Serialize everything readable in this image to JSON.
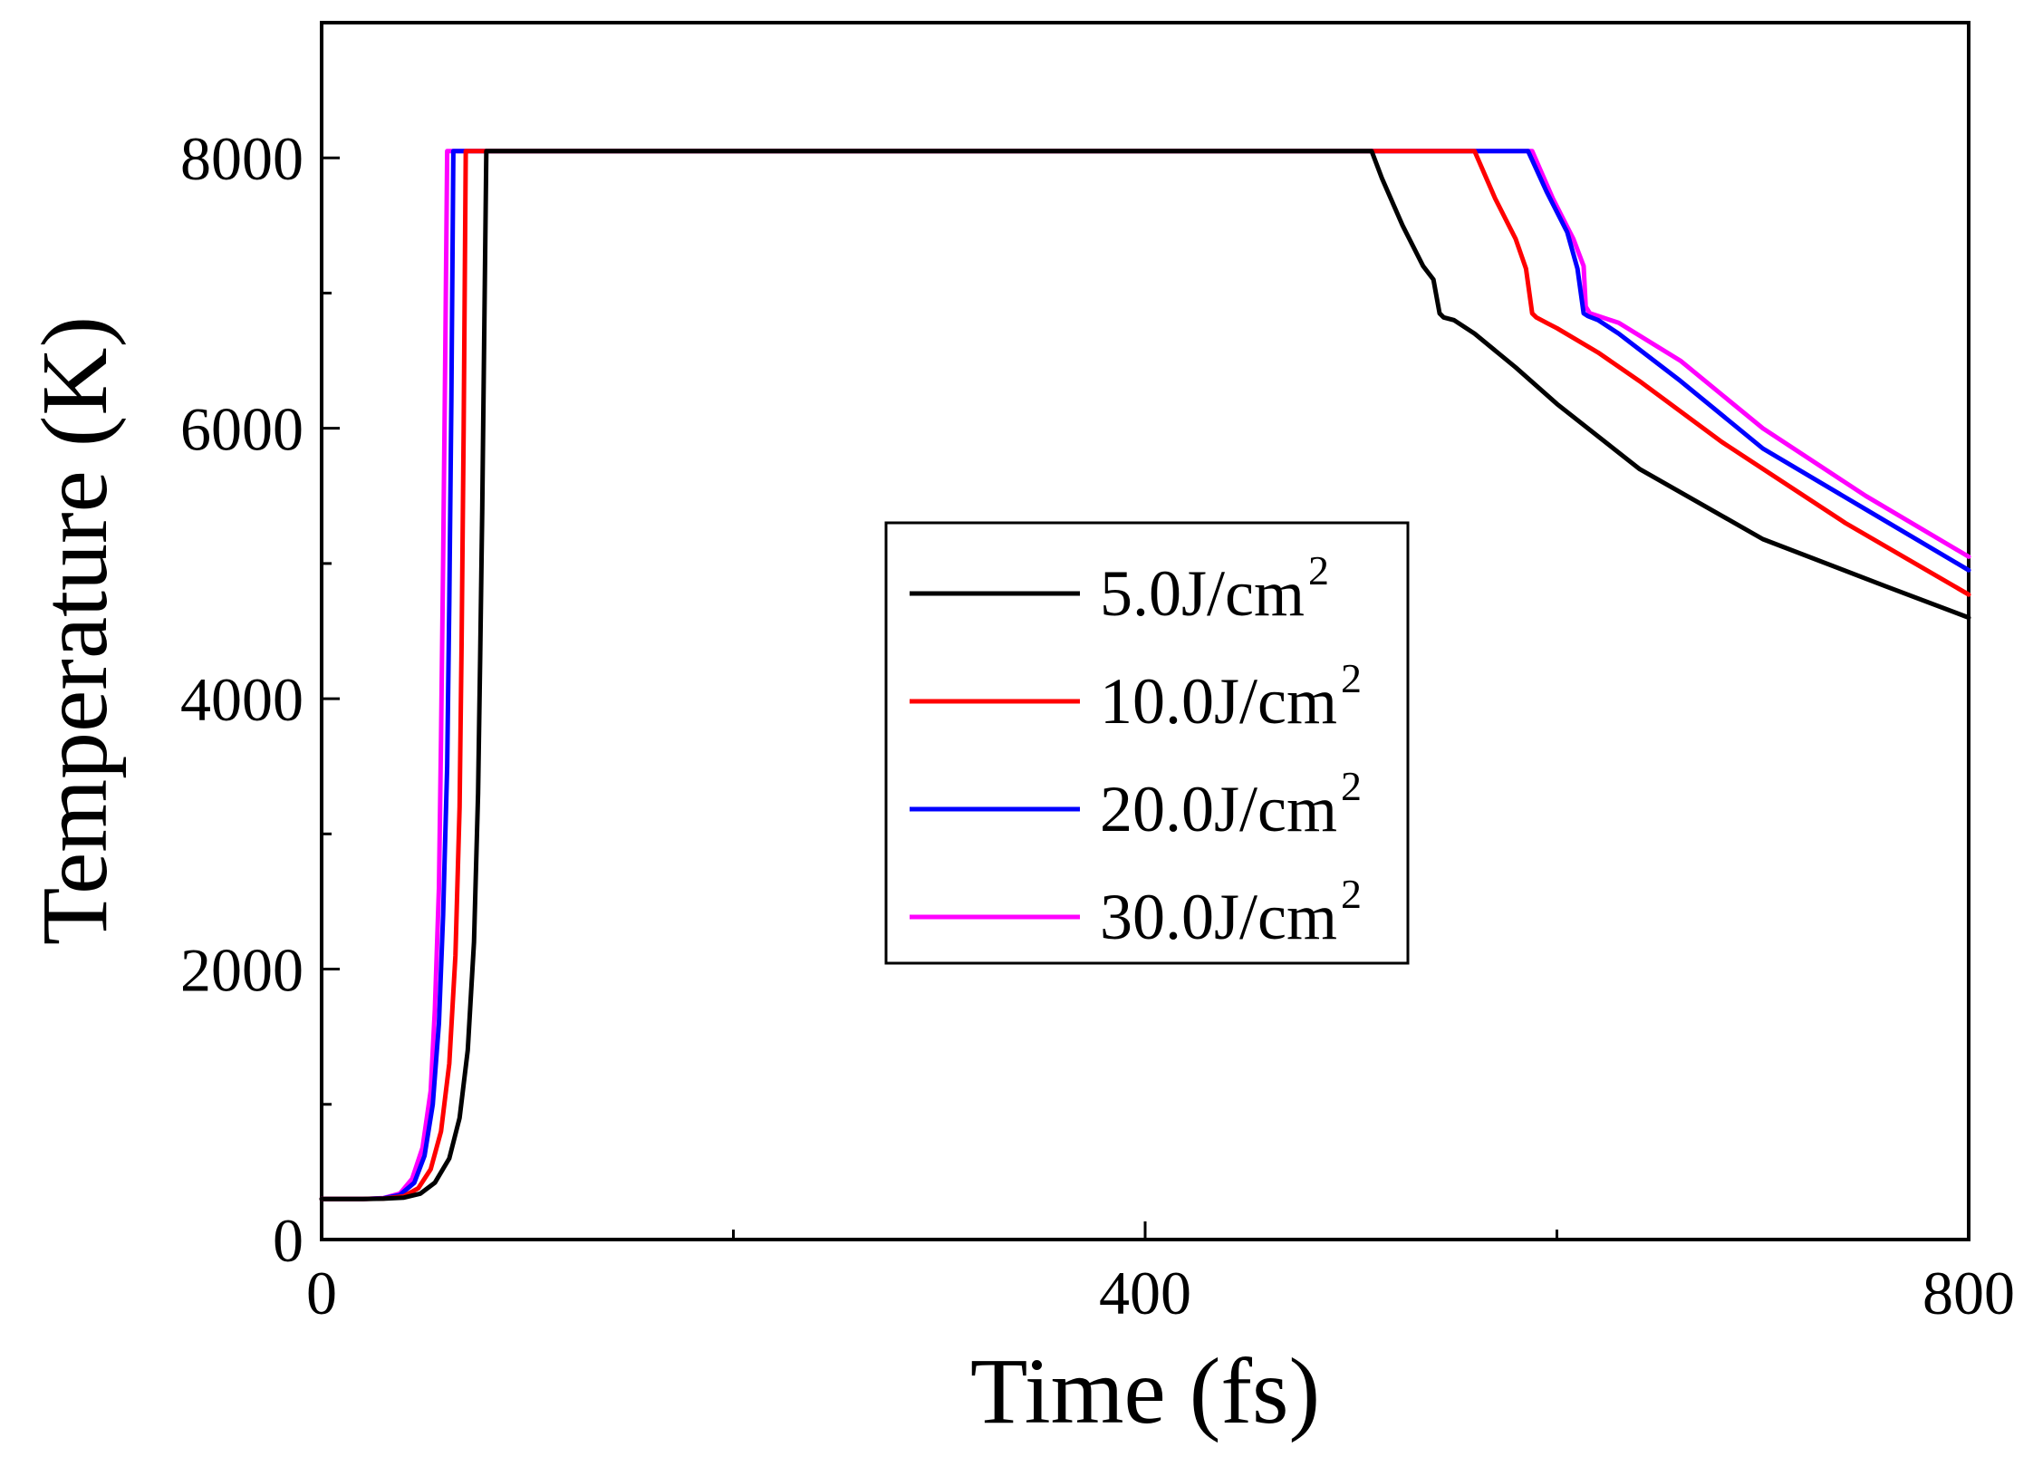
{
  "chart_data": {
    "type": "line",
    "title": "",
    "xlabel": "Time (fs)",
    "ylabel": "Temperature (K)",
    "xlim": [
      0,
      800
    ],
    "ylim": [
      0,
      9000
    ],
    "xticks": [
      0,
      400,
      800
    ],
    "yticks": [
      0,
      2000,
      4000,
      6000,
      8000
    ],
    "grid": false,
    "legend_position": "center-right",
    "series": [
      {
        "name": "5.0J/cm2",
        "label_main": "5.0J/cm",
        "label_sup": "2",
        "color": "#000000",
        "x": [
          0,
          20,
          30,
          40,
          48,
          55,
          62,
          67,
          71,
          74,
          76,
          77,
          78,
          79,
          80,
          510,
          515,
          525,
          535,
          540,
          543,
          545,
          550,
          560,
          580,
          600,
          640,
          700,
          760,
          800
        ],
        "y": [
          300,
          300,
          302,
          310,
          340,
          420,
          600,
          900,
          1400,
          2200,
          3300,
          4300,
          5400,
          6700,
          8050,
          8050,
          7850,
          7500,
          7200,
          7100,
          6850,
          6820,
          6800,
          6700,
          6450,
          6180,
          5700,
          5180,
          4830,
          4600
        ]
      },
      {
        "name": "10.0J/cm2",
        "label_main": "10.0J/cm",
        "label_sup": "2",
        "color": "#ff0000",
        "x": [
          0,
          20,
          30,
          40,
          47,
          53,
          58,
          62,
          65,
          67,
          68,
          69,
          70,
          560,
          570,
          580,
          585,
          588,
          590,
          595,
          600,
          620,
          640,
          680,
          740,
          800
        ],
        "y": [
          300,
          300,
          303,
          320,
          380,
          520,
          800,
          1300,
          2100,
          3200,
          4400,
          6000,
          8050,
          8050,
          7700,
          7400,
          7180,
          6850,
          6820,
          6780,
          6740,
          6560,
          6350,
          5900,
          5300,
          4770
        ]
      },
      {
        "name": "20.0J/cm2",
        "label_main": "20.0J/cm",
        "label_sup": "2",
        "color": "#0000ff",
        "x": [
          0,
          20,
          30,
          38,
          45,
          50,
          54,
          57,
          59,
          61,
          62,
          63,
          64,
          586,
          595,
          605,
          610,
          613,
          615,
          620,
          630,
          660,
          700,
          750,
          800
        ],
        "y": [
          300,
          300,
          305,
          330,
          420,
          620,
          1000,
          1600,
          2400,
          3500,
          4700,
          6200,
          8050,
          8050,
          7750,
          7450,
          7180,
          6850,
          6830,
          6800,
          6700,
          6350,
          5850,
          5400,
          4950
        ]
      },
      {
        "name": "30.0J/cm2",
        "label_main": "30.0J/cm",
        "label_sup": "2",
        "color": "#ff00ff",
        "x": [
          0,
          20,
          30,
          38,
          44,
          49,
          53,
          55,
          57,
          58,
          59,
          60,
          61,
          588,
          598,
          608,
          613,
          614,
          616,
          620,
          630,
          660,
          700,
          750,
          800
        ],
        "y": [
          300,
          300,
          306,
          340,
          450,
          680,
          1100,
          1700,
          2600,
          3700,
          5000,
          6500,
          8050,
          8050,
          7700,
          7400,
          7200,
          6900,
          6850,
          6830,
          6780,
          6500,
          6000,
          5500,
          5050
        ]
      }
    ]
  }
}
